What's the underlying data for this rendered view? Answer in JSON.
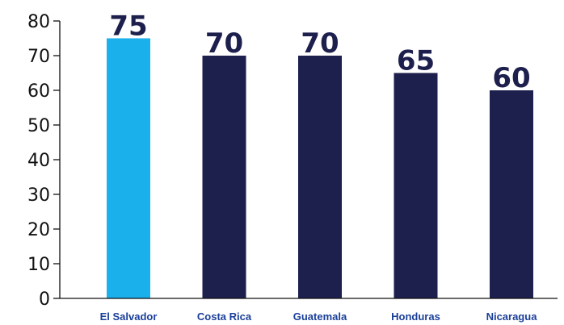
{
  "chart_data": {
    "type": "bar",
    "categories": [
      "El Salvador",
      "Costa Rica",
      "Guatemala",
      "Honduras",
      "Nicaragua"
    ],
    "values": [
      75,
      70,
      70,
      65,
      60
    ],
    "data_labels": [
      "75",
      "70",
      "70",
      "65",
      "60"
    ],
    "highlight_index": 0,
    "y_ticks": [
      "0",
      "10",
      "20",
      "30",
      "40",
      "50",
      "60",
      "70",
      "80"
    ],
    "ylim": [
      0,
      80
    ],
    "grid": false,
    "legend": "none",
    "title": "",
    "xlabel": "",
    "ylabel": "",
    "colors": {
      "highlight": "#19b0ec",
      "bar": "#1d1f4d",
      "data_label": "#1d1f4d",
      "category_label": "#1a3f9a",
      "axis": "#111111"
    }
  }
}
